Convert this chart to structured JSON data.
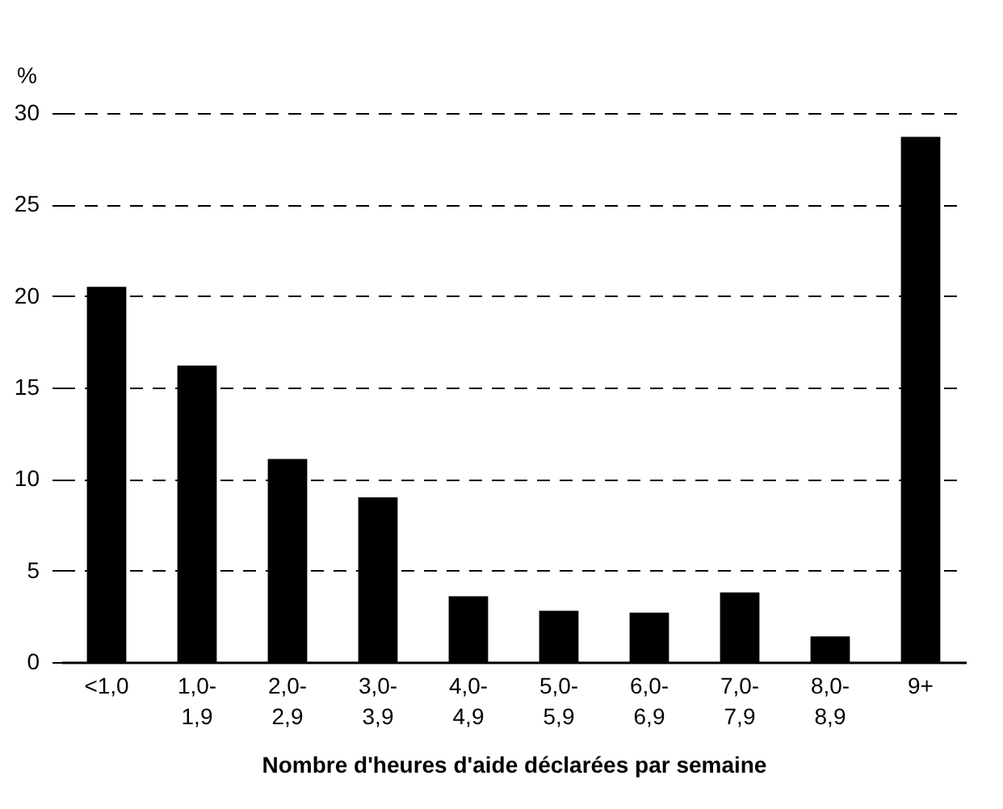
{
  "chart_data": {
    "type": "bar",
    "ylabel": "%",
    "xlabel": "Nombre d'heures d'aide déclarées par semaine",
    "categories": [
      "<1,0",
      "1,0-\n1,9",
      "2,0-\n2,9",
      "3,0-\n3,9",
      "4,0-\n4,9",
      "5,0-\n5,9",
      "6,0-\n6,9",
      "7,0-\n7,9",
      "8,0-\n8,9",
      "9+"
    ],
    "values": [
      20.5,
      16.2,
      11.1,
      9.0,
      3.6,
      2.8,
      2.7,
      3.8,
      1.4,
      28.7
    ],
    "color": "#000000",
    "ylim": [
      0,
      30
    ],
    "yticks": [
      0,
      5,
      10,
      15,
      20,
      25,
      30
    ],
    "grid": "y"
  }
}
